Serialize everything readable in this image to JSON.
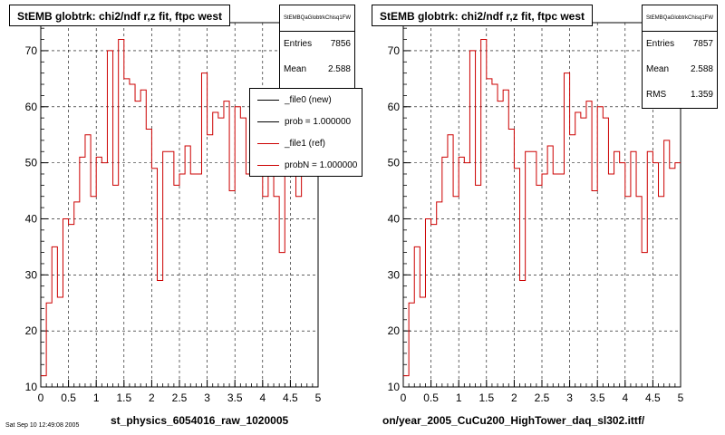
{
  "chart_data": [
    {
      "type": "line",
      "title": "StEMB globtrk: chi2/ndf r,z fit, ftpc west",
      "xlabel": "",
      "ylabel": "",
      "xlim": [
        0,
        5
      ],
      "ylim": [
        10,
        75
      ],
      "xticks": [
        "0",
        "0.5",
        "1",
        "1.5",
        "2",
        "2.5",
        "3",
        "3.5",
        "4",
        "4.5",
        "5"
      ],
      "yticks": [
        "10",
        "20",
        "30",
        "40",
        "50",
        "60",
        "70"
      ],
      "grid": true,
      "series": [
        {
          "color": "#cc0000",
          "step": true,
          "bin_width": 0.1,
          "x": [
            0,
            0.1,
            0.2,
            0.3,
            0.4,
            0.5,
            0.6,
            0.7,
            0.8,
            0.9,
            1.0,
            1.1,
            1.2,
            1.3,
            1.4,
            1.5,
            1.6,
            1.7,
            1.8,
            1.9,
            2.0,
            2.1,
            2.2,
            2.3,
            2.4,
            2.5,
            2.6,
            2.7,
            2.8,
            2.9,
            3.0,
            3.1,
            3.2,
            3.3,
            3.4,
            3.5,
            3.6,
            3.7,
            3.8,
            3.9,
            4.0,
            4.1,
            4.2,
            4.3,
            4.4,
            4.5,
            4.6,
            4.7,
            4.8,
            4.9
          ],
          "values": [
            12,
            25,
            35,
            26,
            40,
            39,
            43,
            51,
            55,
            44,
            51,
            50,
            70,
            46,
            72,
            65,
            64,
            61,
            63,
            56,
            49,
            29,
            52,
            52,
            46,
            48,
            53,
            48,
            48,
            66,
            55,
            59,
            58,
            61,
            45,
            60,
            58,
            48,
            52,
            50,
            44,
            52,
            44,
            34,
            52,
            50,
            44,
            54,
            49,
            50
          ]
        }
      ],
      "stats": {
        "name": "StEMBQaGlobtrkChisq1FW",
        "entries_label": "Entries",
        "entries": "7856",
        "mean_label": "Mean",
        "mean": "2.588"
      },
      "legend": {
        "placement": "top-right",
        "items": [
          {
            "label": "_file0 (new)",
            "color": "#000000"
          },
          {
            "label": "prob = 1.000000",
            "color": "#000000"
          },
          {
            "label": "_file1 (ref)",
            "color": "#cc0000"
          },
          {
            "label": "probN = 1.000000",
            "color": "#cc0000"
          }
        ]
      },
      "footer": "st_physics_6054016_raw_1020005"
    },
    {
      "type": "line",
      "title": "StEMB globtrk: chi2/ndf r,z fit, ftpc west",
      "xlabel": "",
      "ylabel": "",
      "xlim": [
        0,
        5
      ],
      "ylim": [
        10,
        75
      ],
      "xticks": [
        "0",
        "0.5",
        "1",
        "1.5",
        "2",
        "2.5",
        "3",
        "3.5",
        "4",
        "4.5",
        "5"
      ],
      "yticks": [
        "10",
        "20",
        "30",
        "40",
        "50",
        "60",
        "70"
      ],
      "grid": true,
      "series": [
        {
          "color": "#cc0000",
          "step": true,
          "bin_width": 0.1,
          "x": [
            0,
            0.1,
            0.2,
            0.3,
            0.4,
            0.5,
            0.6,
            0.7,
            0.8,
            0.9,
            1.0,
            1.1,
            1.2,
            1.3,
            1.4,
            1.5,
            1.6,
            1.7,
            1.8,
            1.9,
            2.0,
            2.1,
            2.2,
            2.3,
            2.4,
            2.5,
            2.6,
            2.7,
            2.8,
            2.9,
            3.0,
            3.1,
            3.2,
            3.3,
            3.4,
            3.5,
            3.6,
            3.7,
            3.8,
            3.9,
            4.0,
            4.1,
            4.2,
            4.3,
            4.4,
            4.5,
            4.6,
            4.7,
            4.8,
            4.9
          ],
          "values": [
            12,
            25,
            35,
            26,
            40,
            39,
            43,
            51,
            55,
            44,
            51,
            50,
            70,
            46,
            72,
            65,
            64,
            61,
            63,
            56,
            49,
            29,
            52,
            52,
            46,
            48,
            53,
            48,
            48,
            66,
            55,
            59,
            58,
            61,
            45,
            60,
            58,
            48,
            52,
            50,
            44,
            52,
            44,
            34,
            52,
            50,
            44,
            54,
            49,
            50
          ]
        }
      ],
      "stats": {
        "name": "StEMBQaGlobtrkChisq1FW",
        "entries_label": "Entries",
        "entries": "7857",
        "mean_label": "Mean",
        "mean": "2.588",
        "rms_label": "RMS",
        "rms": "1.359"
      },
      "footer": "on/year_2005_CuCu200_HighTower_daq_sl302.ittf/"
    }
  ],
  "page": {
    "stamp": "Sat Sep 10 12:49:08 2005"
  }
}
